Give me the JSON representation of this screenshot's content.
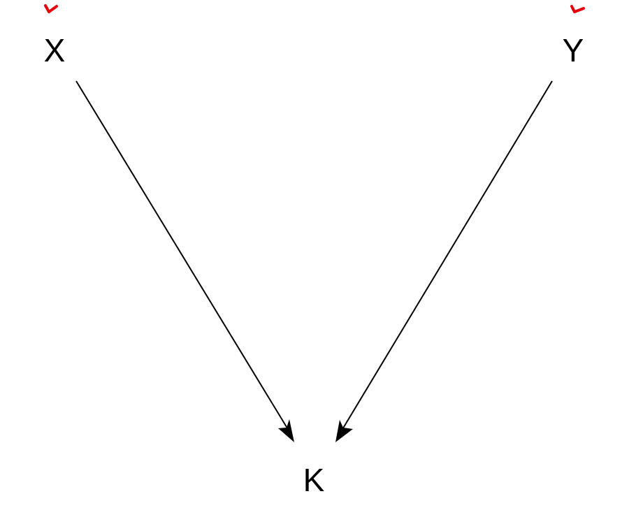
{
  "nodes": {
    "x": {
      "label": "X"
    },
    "y": {
      "label": "Y"
    },
    "k": {
      "label": "K"
    }
  },
  "edges": [
    {
      "from": "X",
      "to": "K"
    },
    {
      "from": "Y",
      "to": "K"
    }
  ],
  "colors": {
    "edge": "#000000",
    "marker": "#e8000b",
    "text": "#000000",
    "background": "#ffffff"
  }
}
